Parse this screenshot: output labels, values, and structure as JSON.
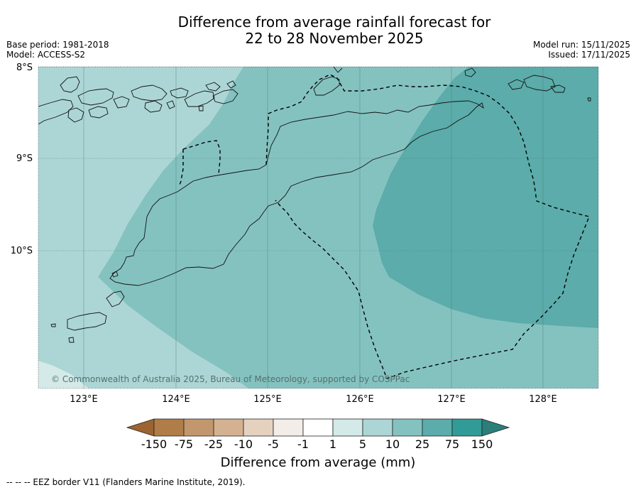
{
  "title": {
    "line1": "Difference from average rainfall forecast for",
    "line2": "22 to 28 November 2025"
  },
  "meta_left": {
    "base_period": "Base period: 1981-2018",
    "model": "Model: ACCESS-S2"
  },
  "meta_right": {
    "model_run": "Model run: 15/11/2025",
    "issued": "Issued: 17/11/2025"
  },
  "axes": {
    "lat_labels": [
      "8°S",
      "9°S",
      "10°S"
    ],
    "lon_labels": [
      "123°E",
      "124°E",
      "125°E",
      "126°E",
      "127°E",
      "128°E"
    ]
  },
  "copyright": "© Commonwealth of Australia 2025, Bureau of Meteorology, supported by COSPPac",
  "colorbar": {
    "ticks": [
      "-150",
      "-75",
      "-25",
      "-10",
      "-5",
      "-1",
      "1",
      "5",
      "10",
      "25",
      "75",
      "150"
    ],
    "colors": [
      "#9c6430",
      "#b07d48",
      "#c3976d",
      "#d4b291",
      "#e4d2bf",
      "#f2ede8",
      "#ffffff",
      "#d3eae8",
      "#acd6d5",
      "#84c2c0",
      "#5bacaa",
      "#319b98",
      "#2a7f7a"
    ],
    "label": "Difference from average (mm)"
  },
  "legend_footer": "--  --  -- EEZ border V11 (Flanders Marine Institute, 2019).",
  "colors": {
    "band_light": "#d3eae8",
    "band_5_10": "#acd6d5",
    "band_10_25": "#84c2c0",
    "band_25_75": "#5bacaa"
  }
}
